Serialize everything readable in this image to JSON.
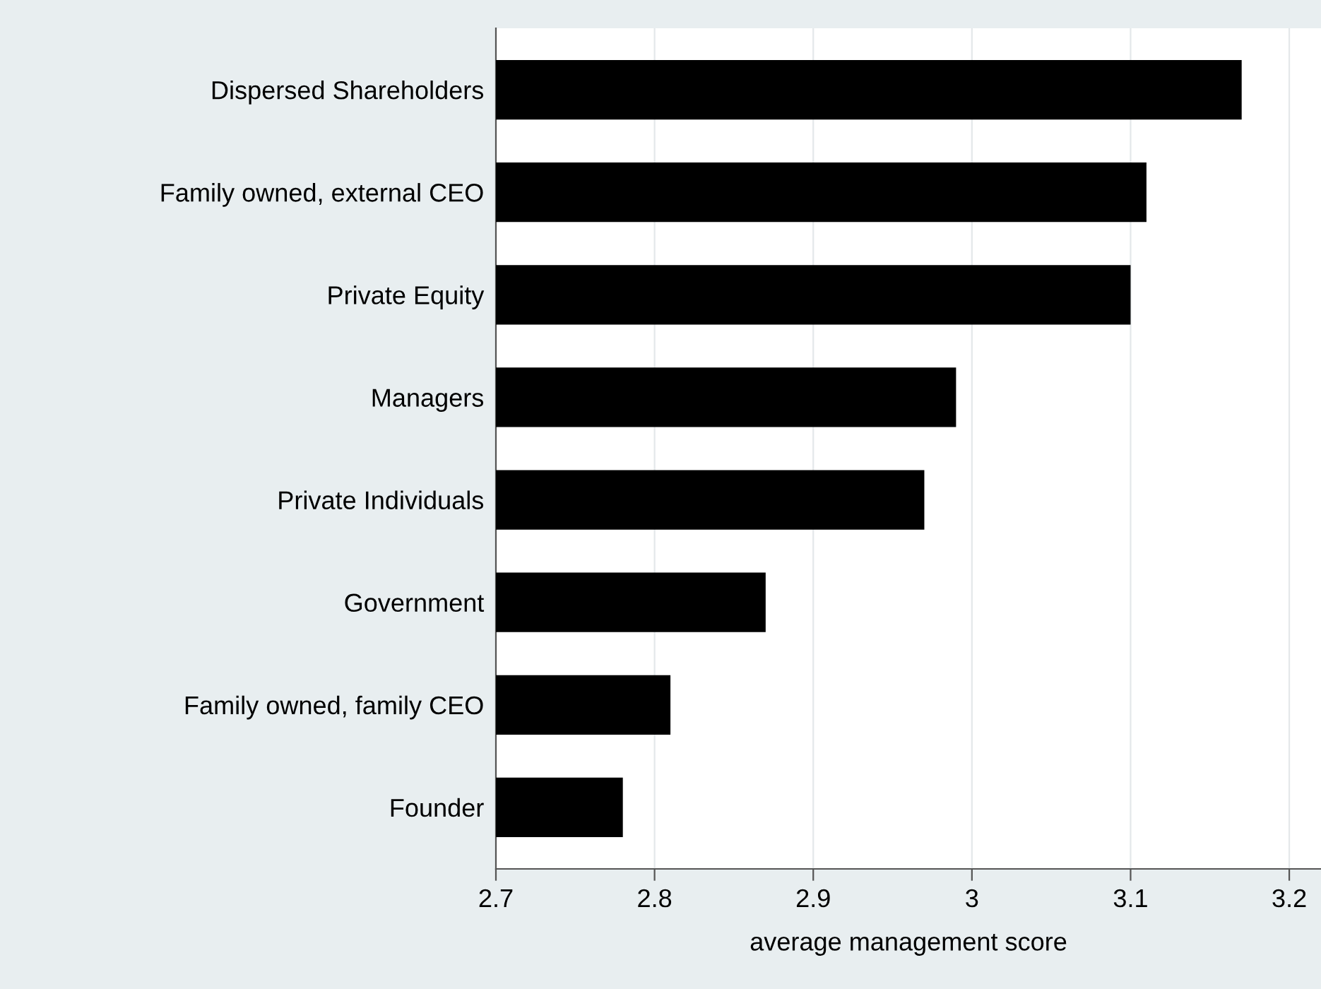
{
  "chart_data": {
    "type": "bar",
    "orientation": "horizontal",
    "categories": [
      "Dispersed Shareholders",
      "Family owned, external CEO",
      "Private Equity",
      "Managers",
      "Private Individuals",
      "Government",
      "Family owned, family CEO",
      "Founder"
    ],
    "values": [
      3.17,
      3.11,
      3.1,
      2.99,
      2.97,
      2.87,
      2.81,
      2.78
    ],
    "color": "#000000",
    "xlabel": "average management score",
    "xlim": [
      2.7,
      3.22
    ],
    "xticks": [
      2.7,
      2.8,
      2.9,
      3,
      3.1,
      3.2
    ],
    "grid": "x"
  }
}
